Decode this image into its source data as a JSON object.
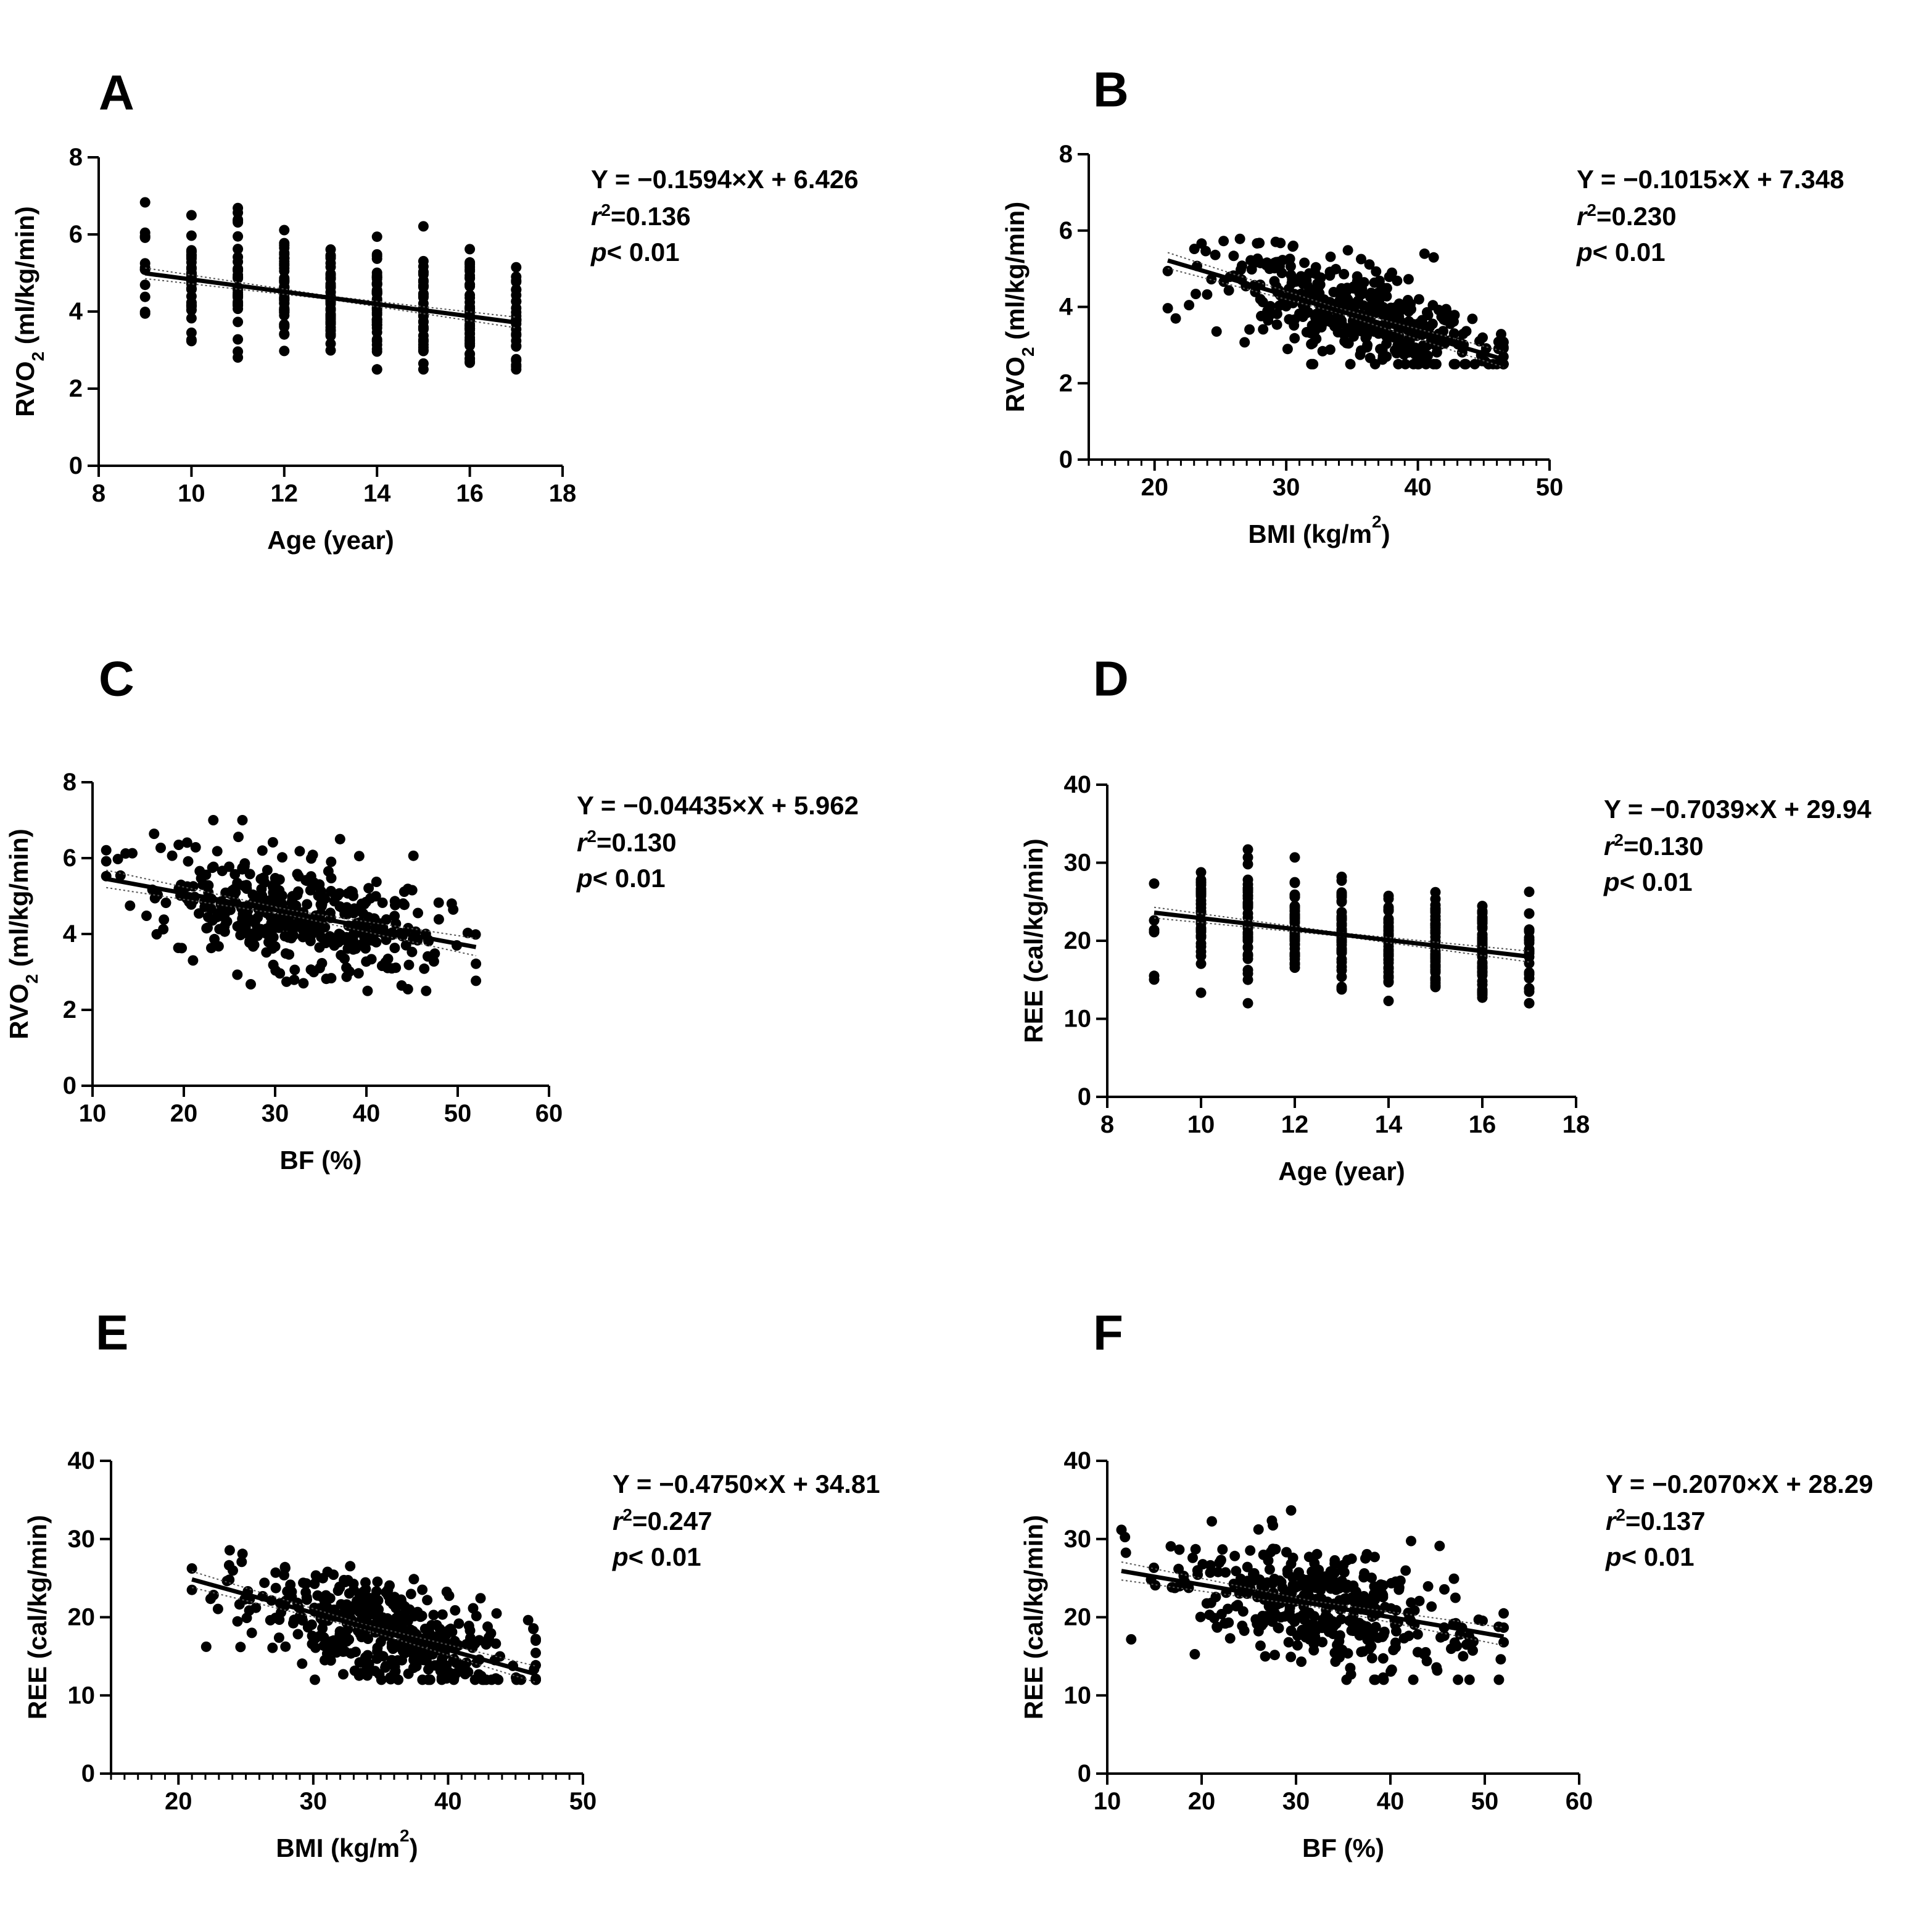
{
  "figure": {
    "panel_count": 6
  },
  "chart_data": [
    {
      "panel_label": "A",
      "type": "scatter",
      "xlabel": "Age (year)",
      "ylabel": "RVO",
      "ylabel_sub": "2",
      "ylabel_tail": " (ml/kg/min)",
      "xlim": [
        8,
        18
      ],
      "ylim": [
        0,
        8
      ],
      "xticks": [
        8,
        10,
        12,
        14,
        16,
        18
      ],
      "yticks": [
        0,
        2,
        4,
        6,
        8
      ],
      "x_minor": 0,
      "x_discrete": [
        9,
        10,
        11,
        12,
        13,
        14,
        15,
        16,
        17
      ],
      "x_range": [
        9,
        17
      ],
      "y_range": [
        2.5,
        7.0
      ],
      "n_points": 350,
      "seed": 11,
      "noise_sd": 0.75,
      "fit": {
        "slope": -0.1594,
        "intercept": 6.426,
        "band": 0.12
      },
      "annotation": {
        "equation": "Y = −0.1594×X + 6.426",
        "r_prefix": "r",
        "r_sup": "2",
        "r_value": "=0.136",
        "p_italic": "p",
        "p_rest": "< 0.01"
      }
    },
    {
      "panel_label": "B",
      "type": "scatter",
      "xlabel": "BMI (kg/m",
      "xlabel_sup": "2",
      "xlabel_tail": ")",
      "ylabel": "RVO",
      "ylabel_sub": "2",
      "ylabel_tail": " (ml/kg/min)",
      "xlim": [
        15,
        50
      ],
      "ylim": [
        0,
        8
      ],
      "xticks": [
        20,
        30,
        40,
        50
      ],
      "yticks": [
        0,
        2,
        4,
        6,
        8
      ],
      "x_minor": 1,
      "x_range": [
        21,
        46.5
      ],
      "y_range": [
        2.5,
        7.0
      ],
      "n_points": 420,
      "seed": 23,
      "noise_sd": 0.65,
      "fit": {
        "slope": -0.1015,
        "intercept": 7.348,
        "band": 0.18
      },
      "annotation": {
        "equation": "Y = −0.1015×X + 7.348",
        "r_prefix": "r",
        "r_sup": "2",
        "r_value": "=0.230",
        "p_italic": "p",
        "p_rest": "< 0.01"
      }
    },
    {
      "panel_label": "C",
      "type": "scatter",
      "xlabel": "BF (%)",
      "ylabel": "RVO",
      "ylabel_sub": "2",
      "ylabel_tail": " (ml/kg/min)",
      "xlim": [
        10,
        60
      ],
      "ylim": [
        0,
        8
      ],
      "xticks": [
        10,
        20,
        30,
        40,
        50,
        60
      ],
      "yticks": [
        0,
        2,
        4,
        6,
        8
      ],
      "x_minor": 0,
      "x_range": [
        11.5,
        52
      ],
      "y_range": [
        2.5,
        7.0
      ],
      "n_points": 400,
      "seed": 37,
      "noise_sd": 0.75,
      "fit": {
        "slope": -0.04435,
        "intercept": 5.962,
        "band": 0.2
      },
      "annotation": {
        "equation": "Y = −0.04435×X + 5.962",
        "r_prefix": "r",
        "r_sup": "2",
        "r_value": "=0.130",
        "p_italic": "p",
        "p_rest": "< 0.01"
      }
    },
    {
      "panel_label": "D",
      "type": "scatter",
      "xlabel": "Age (year)",
      "ylabel": "REE (cal/kg/min)",
      "xlim": [
        8,
        18
      ],
      "ylim": [
        0,
        40
      ],
      "xticks": [
        8,
        10,
        12,
        14,
        16,
        18
      ],
      "yticks": [
        0,
        10,
        20,
        30,
        40
      ],
      "x_minor": 0,
      "x_discrete": [
        9,
        10,
        11,
        12,
        13,
        14,
        15,
        16,
        17
      ],
      "x_range": [
        9,
        17
      ],
      "y_range": [
        12,
        34
      ],
      "n_points": 350,
      "seed": 41,
      "noise_sd": 3.6,
      "fit": {
        "slope": -0.7039,
        "intercept": 29.94,
        "band": 0.6
      },
      "annotation": {
        "equation": "Y = −0.7039×X + 29.94",
        "r_prefix": "r",
        "r_sup": "2",
        "r_value": "=0.130",
        "p_italic": "p",
        "p_rest": "< 0.01"
      }
    },
    {
      "panel_label": "E",
      "type": "scatter",
      "xlabel": "BMI (kg/m",
      "xlabel_sup": "2",
      "xlabel_tail": ")",
      "ylabel": "REE (cal/kg/min)",
      "xlim": [
        15,
        50
      ],
      "ylim": [
        0,
        40
      ],
      "xticks": [
        20,
        30,
        40,
        50
      ],
      "yticks": [
        0,
        10,
        20,
        30,
        40
      ],
      "x_minor": 1,
      "x_range": [
        21,
        46.5
      ],
      "y_range": [
        12,
        34
      ],
      "n_points": 420,
      "seed": 53,
      "noise_sd": 3.2,
      "fit": {
        "slope": -0.475,
        "intercept": 34.81,
        "band": 0.9
      },
      "annotation": {
        "equation": "Y = −0.4750×X + 34.81",
        "r_prefix": "r",
        "r_sup": "2",
        "r_value": "=0.247",
        "p_italic": "p",
        "p_rest": "< 0.01"
      }
    },
    {
      "panel_label": "F",
      "type": "scatter",
      "xlabel": "BF (%)",
      "ylabel": "REE (cal/kg/min)",
      "xlim": [
        10,
        60
      ],
      "ylim": [
        0,
        40
      ],
      "xticks": [
        10,
        20,
        30,
        40,
        50,
        60
      ],
      "yticks": [
        0,
        10,
        20,
        30,
        40
      ],
      "x_minor": 0,
      "x_range": [
        11.5,
        52
      ],
      "y_range": [
        12,
        34
      ],
      "n_points": 400,
      "seed": 67,
      "noise_sd": 3.6,
      "fit": {
        "slope": -0.207,
        "intercept": 28.29,
        "band": 1.0
      },
      "annotation": {
        "equation": "Y = −0.2070×X + 28.29",
        "r_prefix": "r",
        "r_sup": "2",
        "r_value": "=0.137",
        "p_italic": "p",
        "p_rest": "< 0.01"
      }
    }
  ]
}
